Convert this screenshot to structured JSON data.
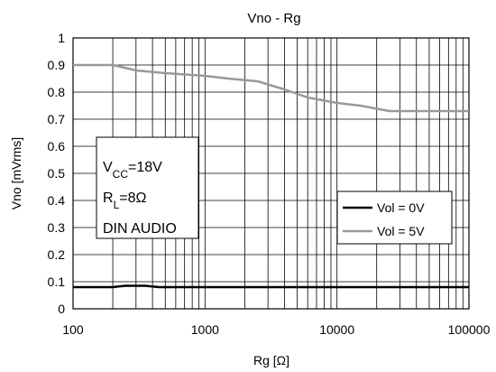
{
  "chart_data": {
    "type": "line",
    "title": "Vno - Rg",
    "xlabel": "Rg [Ω]",
    "ylabel": "Vno [mVrms]",
    "x_scale": "log",
    "xlim": [
      100,
      100000
    ],
    "ylim": [
      0,
      1
    ],
    "x_ticks": [
      100,
      1000,
      10000,
      100000
    ],
    "x_tick_labels": [
      "100",
      "1000",
      "10000",
      "100000"
    ],
    "y_ticks": [
      0,
      0.1,
      0.2,
      0.3,
      0.4,
      0.5,
      0.6,
      0.7,
      0.8,
      0.9,
      1
    ],
    "y_tick_labels": [
      "0",
      "0.1",
      "0.2",
      "0.3",
      "0.4",
      "0.5",
      "0.6",
      "0.7",
      "0.8",
      "0.9",
      "1"
    ],
    "grid": true,
    "legend_position": "center-right",
    "series": [
      {
        "name": "Vol = 0V",
        "color": "#000000",
        "x": [
          100,
          200,
          250,
          350,
          450,
          1000,
          10000,
          100000
        ],
        "y": [
          0.08,
          0.08,
          0.085,
          0.085,
          0.08,
          0.08,
          0.08,
          0.08
        ]
      },
      {
        "name": "Vol = 5V",
        "color": "#999999",
        "x": [
          100,
          200,
          300,
          500,
          1000,
          1500,
          2500,
          4000,
          6000,
          10000,
          15000,
          25000,
          30000,
          100000
        ],
        "y": [
          0.9,
          0.9,
          0.88,
          0.87,
          0.86,
          0.85,
          0.84,
          0.81,
          0.78,
          0.76,
          0.75,
          0.73,
          0.73,
          0.73
        ]
      }
    ],
    "annotation": {
      "lines": [
        {
          "main": "V",
          "sub": "CC",
          "rest": "=18V"
        },
        {
          "main": "R",
          "sub": "L",
          "rest": "=8Ω"
        },
        {
          "main": "DIN AUDIO",
          "sub": "",
          "rest": ""
        }
      ]
    }
  }
}
